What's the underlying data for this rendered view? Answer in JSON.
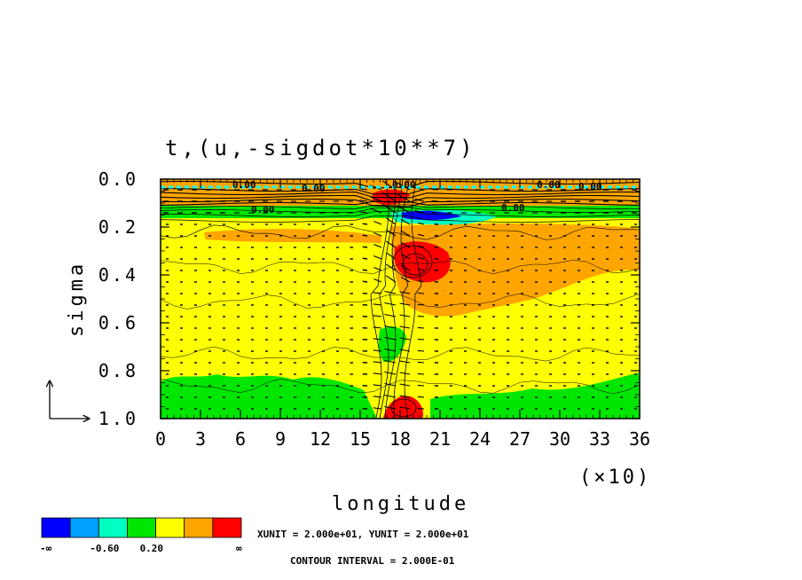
{
  "chart_data": {
    "type": "heatmap",
    "title": "t,(u,-sigdot*10**7)",
    "xlabel": "longitude",
    "ylabel": "sigma",
    "x_multiplier_label": "(×10)",
    "xlim": [
      0,
      36
    ],
    "ylim": [
      0.0,
      1.0
    ],
    "y_inverted": true,
    "x_ticks": [
      "0",
      "3",
      "6",
      "9",
      "12",
      "15",
      "18",
      "21",
      "24",
      "27",
      "30",
      "33",
      "36"
    ],
    "y_ticks": [
      "0.0",
      "0.2",
      "0.4",
      "0.6",
      "0.8",
      "1.0"
    ],
    "contour_labels": [
      "0.00",
      "0.00",
      "0.00",
      "0.00",
      "0.00",
      "0.00",
      "0.00"
    ],
    "colorbar": {
      "colors": [
        "#0000ff",
        "#00a0ff",
        "#00ffc0",
        "#00e600",
        "#ffff00",
        "#ffa500",
        "#ff0000"
      ],
      "labels": [
        "-∞",
        "-0.60",
        "0.20",
        "∞"
      ]
    },
    "units_text": "XUNIT = 2.000e+01, YUNIT = 2.000e+01",
    "contour_interval_text": "CONTOUR INTERVAL = 2.000E-01"
  }
}
